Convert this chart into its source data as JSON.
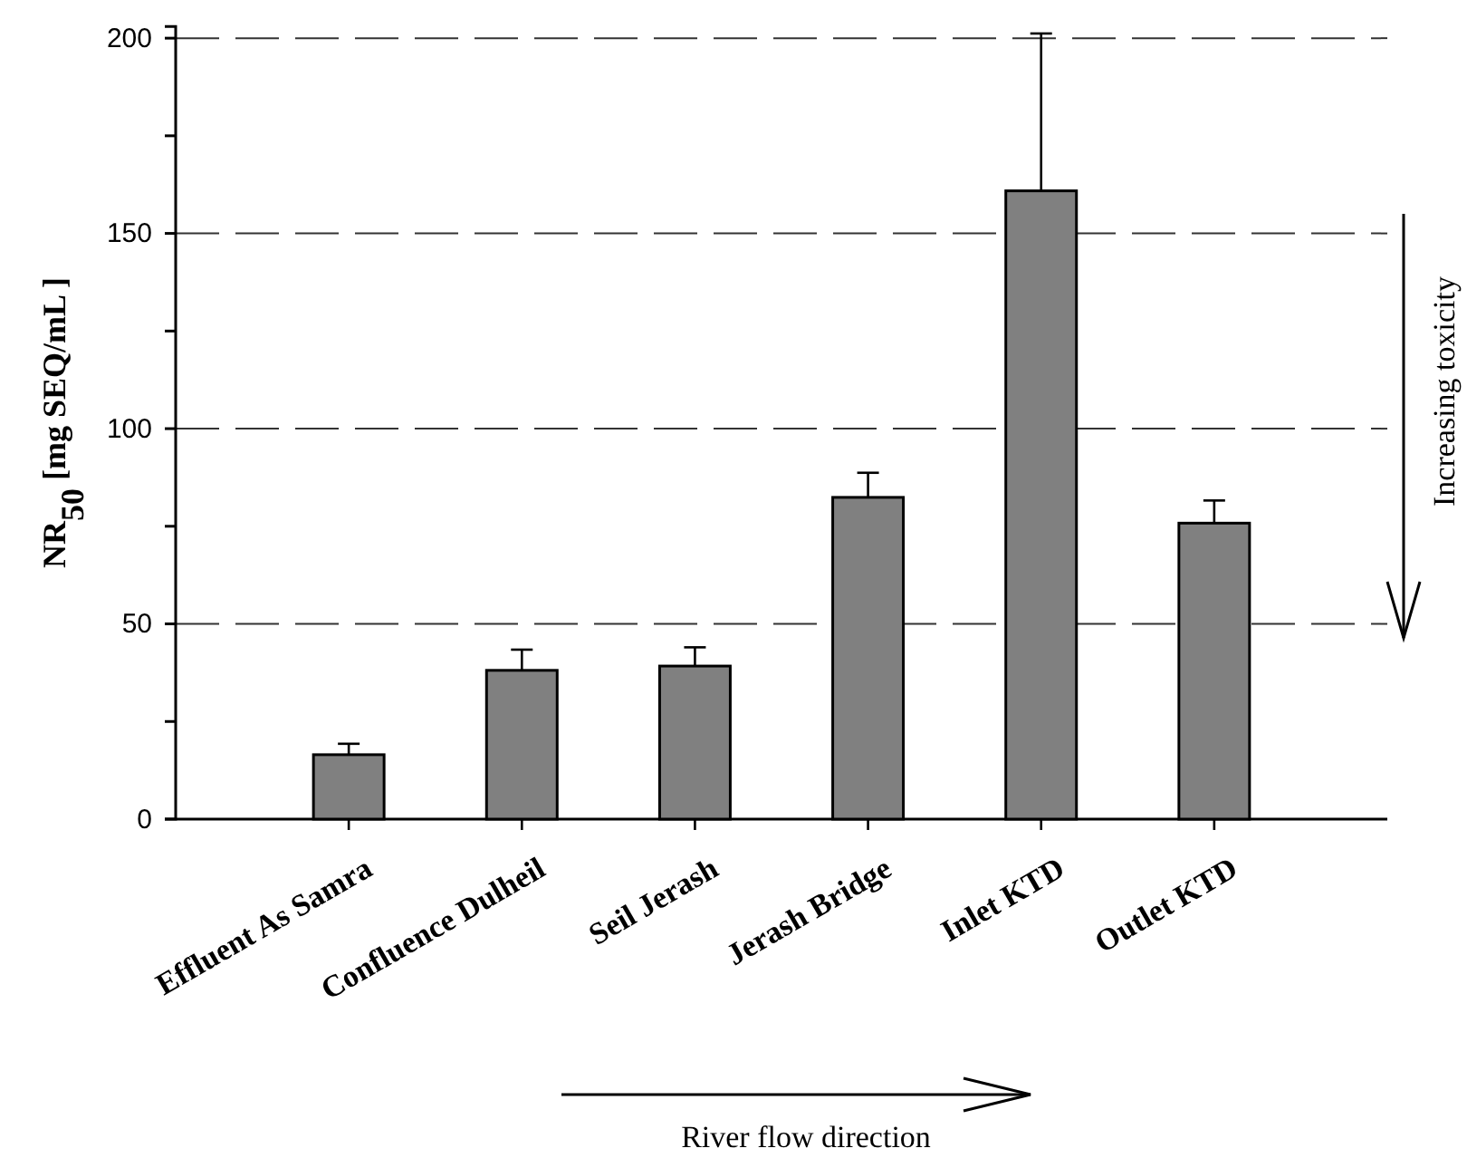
{
  "chart_data": {
    "type": "bar",
    "ylabel": "NR$_{50}$ [mg SEQ/mL ]",
    "categories": [
      "Effluent As Samra",
      "Confluence Dulheil",
      "Seil Jerash",
      "Jerash Bridge",
      "Inlet KTD",
      "Outlet KTD"
    ],
    "values": [
      16.5,
      38.1,
      39.2,
      82.4,
      160.9,
      75.8
    ],
    "errors": [
      [
        16.5,
        19.3
      ],
      [
        38.1,
        43.4
      ],
      [
        39.2,
        44.0
      ],
      [
        82.4,
        88.7
      ],
      [
        160.9,
        201.2
      ],
      [
        75.8,
        81.6
      ]
    ],
    "color": "#808080",
    "ylim": [
      0,
      203
    ],
    "yticks": [
      0,
      {
        "value": 25,
        "label": null
      },
      50,
      {
        "value": 75,
        "label": null
      },
      100,
      {
        "value": 125,
        "label": null
      },
      150,
      {
        "value": 175,
        "label": null
      },
      200
    ],
    "grid": "y",
    "annotations": [
      "Increasing toxicity",
      "River flow direction"
    ]
  }
}
